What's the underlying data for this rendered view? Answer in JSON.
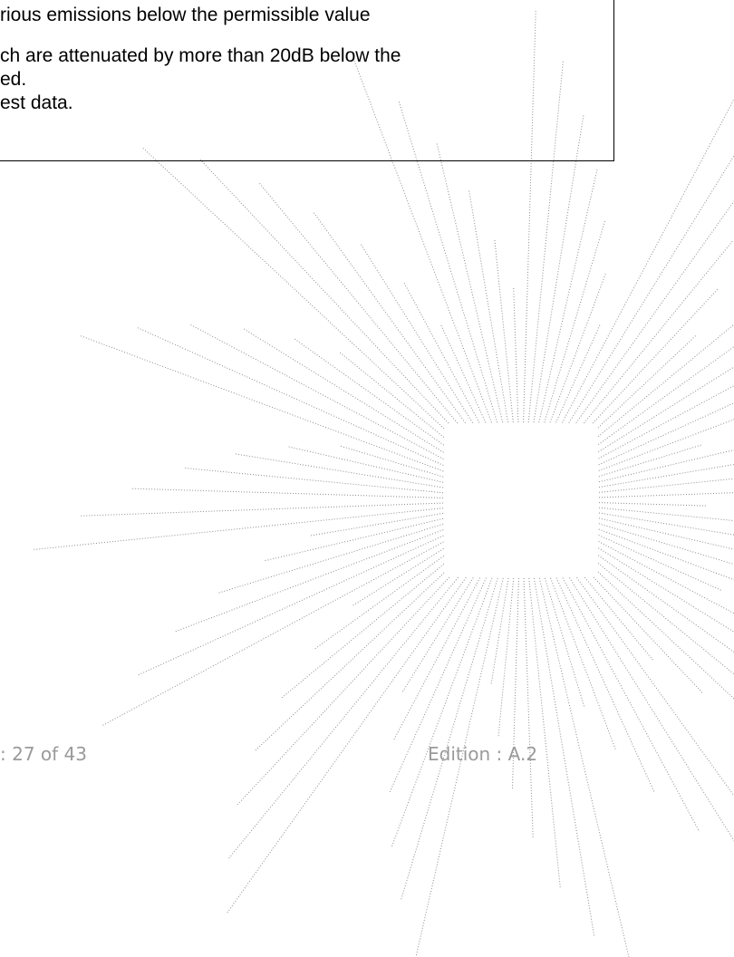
{
  "body": {
    "lines": [
      "rious emissions below the permissible value",
      "ch are attenuated by more than 20dB below the",
      "ed.",
      "est data."
    ]
  },
  "footer": {
    "page": ": 27 of 43",
    "edition": "Edition : A.2"
  }
}
